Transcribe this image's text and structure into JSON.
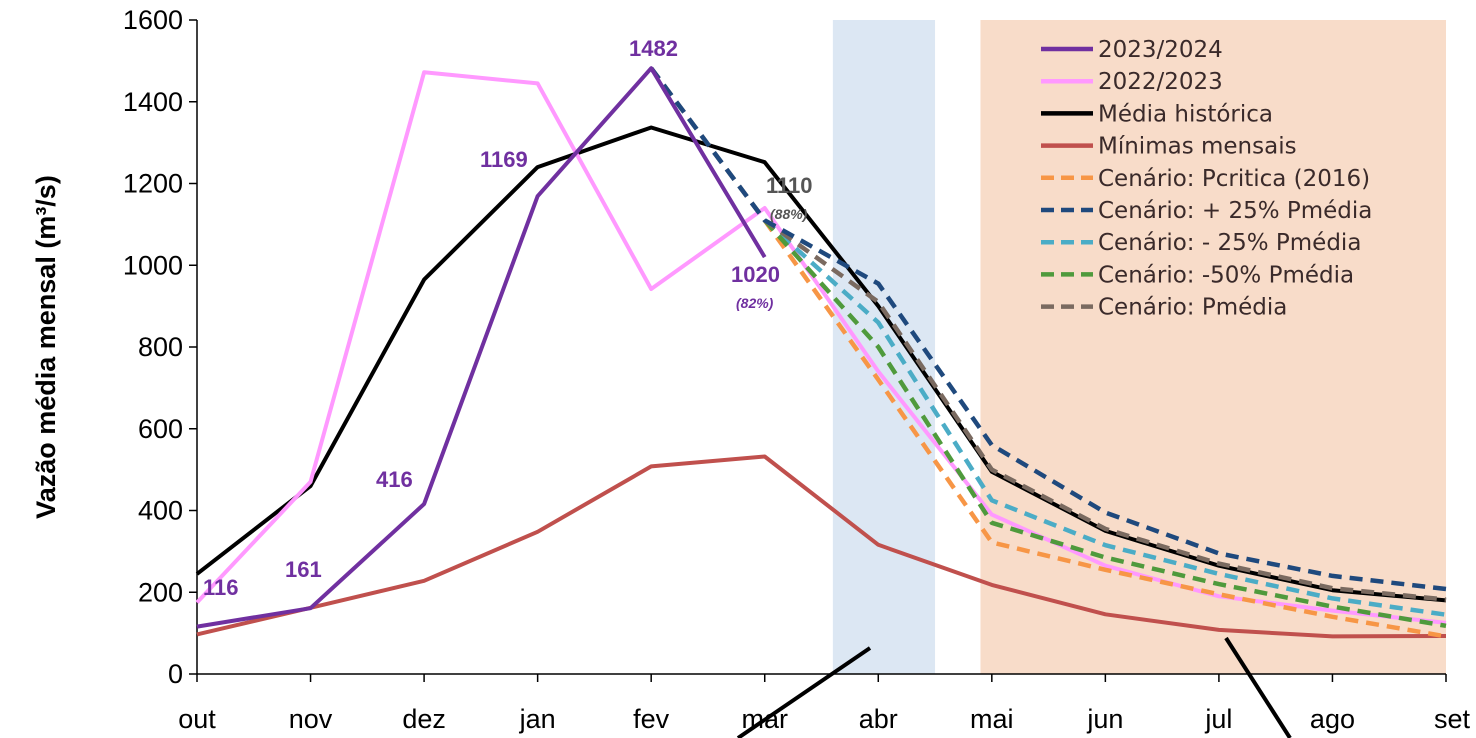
{
  "chart_data": {
    "type": "line",
    "ylabel": "Vazão média mensal (m³/s)",
    "xlabel": "",
    "title": "",
    "ylim": [
      0,
      1600
    ],
    "yticks": [
      0,
      200,
      400,
      600,
      800,
      1000,
      1200,
      1400,
      1600
    ],
    "categories": [
      "out",
      "nov",
      "dez",
      "jan",
      "fev",
      "mar",
      "abr",
      "mai",
      "jun",
      "jul",
      "ago",
      "set"
    ],
    "grid": false,
    "legend_position": "top-right",
    "shaded_regions": [
      {
        "from": 5.6,
        "to": 6.5,
        "color": "#dce7f3"
      },
      {
        "from": 6.9,
        "to": 11,
        "color": "#f8dcc9"
      }
    ],
    "series": [
      {
        "name": "2023/2024",
        "style": "solid",
        "color": "#7030a0",
        "values": [
          116,
          161,
          416,
          1169,
          1482,
          1020,
          null,
          null,
          null,
          null,
          null,
          null
        ]
      },
      {
        "name": "2022/2023",
        "style": "solid",
        "color": "#ff99ff",
        "values": [
          175,
          470,
          1472,
          1445,
          942,
          1140,
          740,
          390,
          265,
          190,
          155,
          125
        ]
      },
      {
        "name": "Média histórica",
        "style": "solid",
        "color": "#000000",
        "values": [
          245,
          460,
          965,
          1240,
          1337,
          1252,
          900,
          495,
          350,
          265,
          205,
          180
        ]
      },
      {
        "name": "Mínimas mensais",
        "style": "solid",
        "color": "#c0504d",
        "values": [
          97,
          162,
          228,
          348,
          508,
          532,
          316,
          218,
          146,
          108,
          92,
          93
        ]
      },
      {
        "name": "Cenário: Pcritica (2016)",
        "style": "dashed",
        "color": "#f79646",
        "values": [
          null,
          null,
          null,
          null,
          null,
          1110,
          720,
          322,
          255,
          195,
          140,
          92
        ]
      },
      {
        "name": "Cenário: + 25% Pmédia",
        "style": "dashed",
        "color": "#1f497d",
        "values": [
          null,
          null,
          null,
          null,
          1482,
          1110,
          955,
          560,
          395,
          295,
          240,
          208
        ]
      },
      {
        "name": "Cenário: - 25% Pmédia",
        "style": "dashed",
        "color": "#4bacc6",
        "values": [
          null,
          null,
          null,
          null,
          null,
          1110,
          860,
          425,
          315,
          245,
          185,
          145
        ]
      },
      {
        "name": "Cenário: -50% Pmédia",
        "style": "dashed",
        "color": "#4f9a3c",
        "values": [
          null,
          null,
          null,
          null,
          null,
          1110,
          800,
          370,
          285,
          220,
          165,
          118
        ]
      },
      {
        "name": "Cenário: Pmédia",
        "style": "dashed",
        "color": "#7a6a60",
        "values": [
          null,
          null,
          null,
          null,
          1482,
          1110,
          910,
          500,
          355,
          270,
          210,
          182
        ]
      }
    ],
    "data_labels": [
      {
        "text": "116",
        "color": "purple"
      },
      {
        "text": "161",
        "color": "purple"
      },
      {
        "text": "416",
        "color": "purple"
      },
      {
        "text": "1169",
        "color": "purple"
      },
      {
        "text": "1482",
        "color": "purple"
      },
      {
        "text": "1020",
        "color": "purple"
      },
      {
        "text": "(82%)",
        "color": "purple-pct"
      },
      {
        "text": "1110",
        "color": "gray"
      },
      {
        "text": "(88%)",
        "color": "gray-pct"
      }
    ]
  }
}
